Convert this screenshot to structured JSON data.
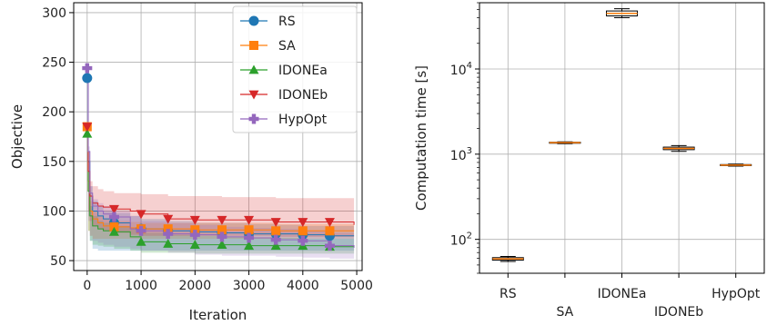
{
  "chart_data": [
    {
      "type": "line",
      "xlabel": "Iteration",
      "ylabel": "Objective",
      "xlim": [
        -250,
        5100
      ],
      "ylim": [
        40,
        310
      ],
      "xticks": [
        0,
        1000,
        2000,
        3000,
        4000,
        5000
      ],
      "yticks": [
        50,
        100,
        150,
        200,
        250,
        300
      ],
      "grid": true,
      "legend": "top-right",
      "series": [
        {
          "name": "RS",
          "color": "#1f77b4",
          "marker": "circle",
          "x": [
            0,
            20,
            50,
            100,
            200,
            300,
            500,
            800,
            1000,
            1500,
            2000,
            2500,
            3000,
            3500,
            4000,
            4500,
            4950
          ],
          "y": [
            234,
            150,
            115,
            100,
            95,
            92,
            88,
            83,
            82,
            80,
            79,
            78,
            77,
            77,
            76,
            75,
            75
          ],
          "markers_x": [
            0,
            500,
            1000,
            1500,
            2000,
            2500,
            3000,
            3500,
            4000,
            4500
          ],
          "band_low": [
            150,
            95,
            70,
            62,
            60,
            60,
            60,
            60,
            60,
            60,
            60,
            60,
            60,
            60,
            60,
            60,
            60
          ],
          "band_high": [
            234,
            160,
            125,
            110,
            105,
            100,
            98,
            95,
            92,
            90,
            88,
            88,
            87,
            86,
            85,
            85,
            85
          ]
        },
        {
          "name": "SA",
          "color": "#ff7f0e",
          "marker": "square",
          "x": [
            0,
            20,
            50,
            100,
            200,
            300,
            500,
            800,
            1000,
            1500,
            2000,
            2500,
            3000,
            3500,
            4000,
            4500,
            4950
          ],
          "y": [
            185,
            130,
            100,
            92,
            88,
            85,
            84,
            83,
            82,
            82,
            81,
            81,
            81,
            80,
            80,
            80,
            80
          ],
          "markers_x": [
            0,
            500,
            1000,
            1500,
            2000,
            2500,
            3000,
            3500,
            4000,
            4500
          ],
          "band_low": [
            120,
            80,
            75,
            72,
            72,
            72,
            72,
            72,
            72,
            72,
            72,
            72,
            72,
            72,
            72,
            72,
            72
          ],
          "band_high": [
            185,
            140,
            110,
            100,
            95,
            92,
            90,
            89,
            88,
            88,
            88,
            88,
            88,
            87,
            87,
            87,
            87
          ]
        },
        {
          "name": "IDONEa",
          "color": "#2ca02c",
          "marker": "triangle-up",
          "x": [
            0,
            20,
            50,
            100,
            200,
            300,
            500,
            800,
            1000,
            1500,
            2000,
            2500,
            3000,
            3500,
            4000,
            4500,
            4950
          ],
          "y": [
            178,
            120,
            95,
            85,
            82,
            80,
            79,
            74,
            69,
            67,
            66,
            66,
            65,
            65,
            65,
            64,
            64
          ],
          "markers_x": [
            0,
            500,
            1000,
            1500,
            2000,
            2500,
            3000,
            3500,
            4000,
            4500
          ],
          "band_low": [
            130,
            80,
            70,
            66,
            65,
            64,
            62,
            60,
            58,
            58,
            57,
            57,
            57,
            57,
            57,
            57,
            57
          ],
          "band_high": [
            178,
            130,
            105,
            95,
            90,
            88,
            85,
            82,
            78,
            76,
            75,
            74,
            73,
            73,
            72,
            72,
            72
          ]
        },
        {
          "name": "IDONEb",
          "color": "#d62728",
          "marker": "triangle-down",
          "x": [
            0,
            20,
            50,
            100,
            200,
            300,
            500,
            800,
            1000,
            1500,
            2000,
            2500,
            3000,
            3500,
            4000,
            4500,
            4950
          ],
          "y": [
            185,
            140,
            115,
            108,
            105,
            104,
            102,
            100,
            97,
            92,
            91,
            91,
            91,
            89,
            89,
            89,
            86
          ],
          "markers_x": [
            0,
            500,
            1000,
            1500,
            2000,
            2500,
            3000,
            3500,
            4000,
            4500
          ],
          "band_low": [
            140,
            100,
            90,
            85,
            82,
            80,
            78,
            76,
            75,
            75,
            75,
            75,
            75,
            74,
            74,
            74,
            74
          ],
          "band_high": [
            185,
            150,
            130,
            125,
            122,
            120,
            118,
            118,
            117,
            115,
            115,
            114,
            114,
            113,
            113,
            113,
            113
          ]
        },
        {
          "name": "HypOpt",
          "color": "#9467bd",
          "marker": "plus",
          "x": [
            0,
            20,
            50,
            100,
            200,
            300,
            500,
            800,
            1000,
            1500,
            2000,
            2500,
            3000,
            3500,
            4000,
            4500,
            4950
          ],
          "y": [
            244,
            160,
            118,
            105,
            100,
            97,
            94,
            82,
            80,
            77,
            76,
            74,
            73,
            71,
            70,
            65,
            63
          ],
          "markers_x": [
            0,
            500,
            1000,
            1500,
            2000,
            2500,
            3000,
            3500,
            4000,
            4500
          ],
          "band_low": [
            150,
            90,
            75,
            70,
            68,
            66,
            64,
            62,
            60,
            58,
            56,
            55,
            55,
            54,
            53,
            52,
            52
          ],
          "band_high": [
            244,
            165,
            125,
            112,
            108,
            105,
            100,
            95,
            90,
            88,
            86,
            84,
            83,
            82,
            80,
            78,
            76
          ]
        }
      ]
    },
    {
      "type": "box",
      "ylabel": "Computation time [s]",
      "yscale": "log",
      "ylim": [
        40,
        60000
      ],
      "yticks": [
        100,
        1000,
        10000
      ],
      "ytick_labels": [
        {
          "base": "10",
          "exp": "2"
        },
        {
          "base": "10",
          "exp": "3"
        },
        {
          "base": "10",
          "exp": "4"
        }
      ],
      "categories": [
        "RS",
        "SA",
        "IDONEa",
        "IDONEb",
        "HypOpt"
      ],
      "grid": true,
      "boxes": [
        {
          "whislo": 55,
          "q1": 57,
          "median": 59,
          "q3": 61,
          "whishi": 63
        },
        {
          "whislo": 1330,
          "q1": 1345,
          "median": 1365,
          "q3": 1380,
          "whishi": 1395
        },
        {
          "whislo": 40000,
          "q1": 42000,
          "median": 45000,
          "q3": 48000,
          "whishi": 51000
        },
        {
          "whislo": 1080,
          "q1": 1130,
          "median": 1170,
          "q3": 1210,
          "whishi": 1260
        },
        {
          "whislo": 725,
          "q1": 735,
          "median": 745,
          "q3": 755,
          "whishi": 765
        }
      ],
      "box_color": "#000000",
      "median_color": "#ff7f0e"
    }
  ]
}
